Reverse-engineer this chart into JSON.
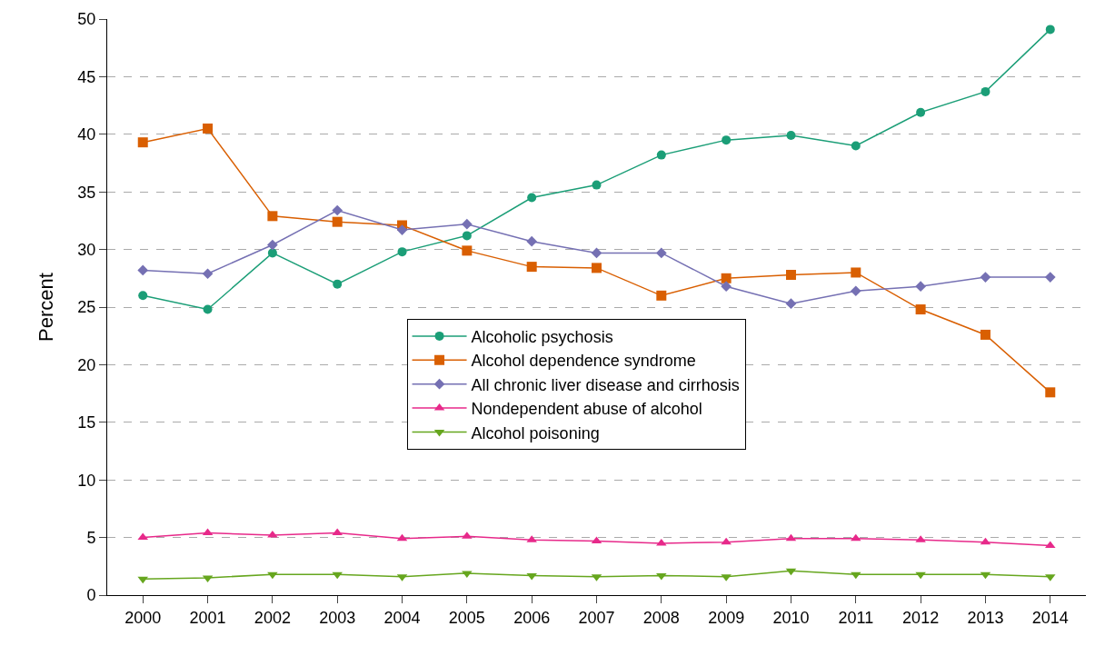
{
  "chart_data": {
    "type": "line",
    "ylabel": "Percent",
    "categories": [
      "2000",
      "2001",
      "2002",
      "2003",
      "2004",
      "2005",
      "2006",
      "2007",
      "2008",
      "2009",
      "2010",
      "2011",
      "2012",
      "2013",
      "2014"
    ],
    "series": [
      {
        "name": "Alcoholic psychosis",
        "color": "#1b9e77",
        "marker": "circle",
        "values": [
          26.0,
          24.8,
          29.7,
          27.0,
          29.8,
          31.2,
          34.5,
          35.6,
          38.2,
          39.5,
          39.9,
          39.0,
          41.9,
          43.7,
          49.1
        ]
      },
      {
        "name": "Alcohol dependence syndrome",
        "color": "#d95f02",
        "marker": "square",
        "values": [
          39.3,
          40.5,
          32.9,
          32.4,
          32.1,
          29.9,
          28.5,
          28.4,
          26.0,
          27.5,
          27.8,
          28.0,
          24.8,
          22.6,
          17.6
        ]
      },
      {
        "name": "All chronic liver disease and cirrhosis",
        "color": "#7570b3",
        "marker": "diamond",
        "values": [
          28.2,
          27.9,
          30.4,
          33.4,
          31.7,
          32.2,
          30.7,
          29.7,
          29.7,
          26.8,
          25.3,
          26.4,
          26.8,
          27.6,
          27.6
        ]
      },
      {
        "name": "Nondependent abuse of alcohol",
        "color": "#e7298a",
        "marker": "triangle",
        "values": [
          5.0,
          5.4,
          5.2,
          5.4,
          4.9,
          5.1,
          4.8,
          4.7,
          4.5,
          4.6,
          4.9,
          4.9,
          4.8,
          4.6,
          4.3
        ]
      },
      {
        "name": "Alcohol poisoning",
        "color": "#66a61e",
        "marker": "triangle-down",
        "values": [
          1.4,
          1.5,
          1.8,
          1.8,
          1.6,
          1.9,
          1.7,
          1.6,
          1.7,
          1.6,
          2.1,
          1.8,
          1.8,
          1.8,
          1.6
        ]
      }
    ],
    "ylim": [
      0,
      50
    ],
    "yticks": [
      0,
      5,
      10,
      15,
      20,
      25,
      30,
      35,
      40,
      45,
      50
    ],
    "grid": "y",
    "legend": "center",
    "line_style": "solid"
  }
}
